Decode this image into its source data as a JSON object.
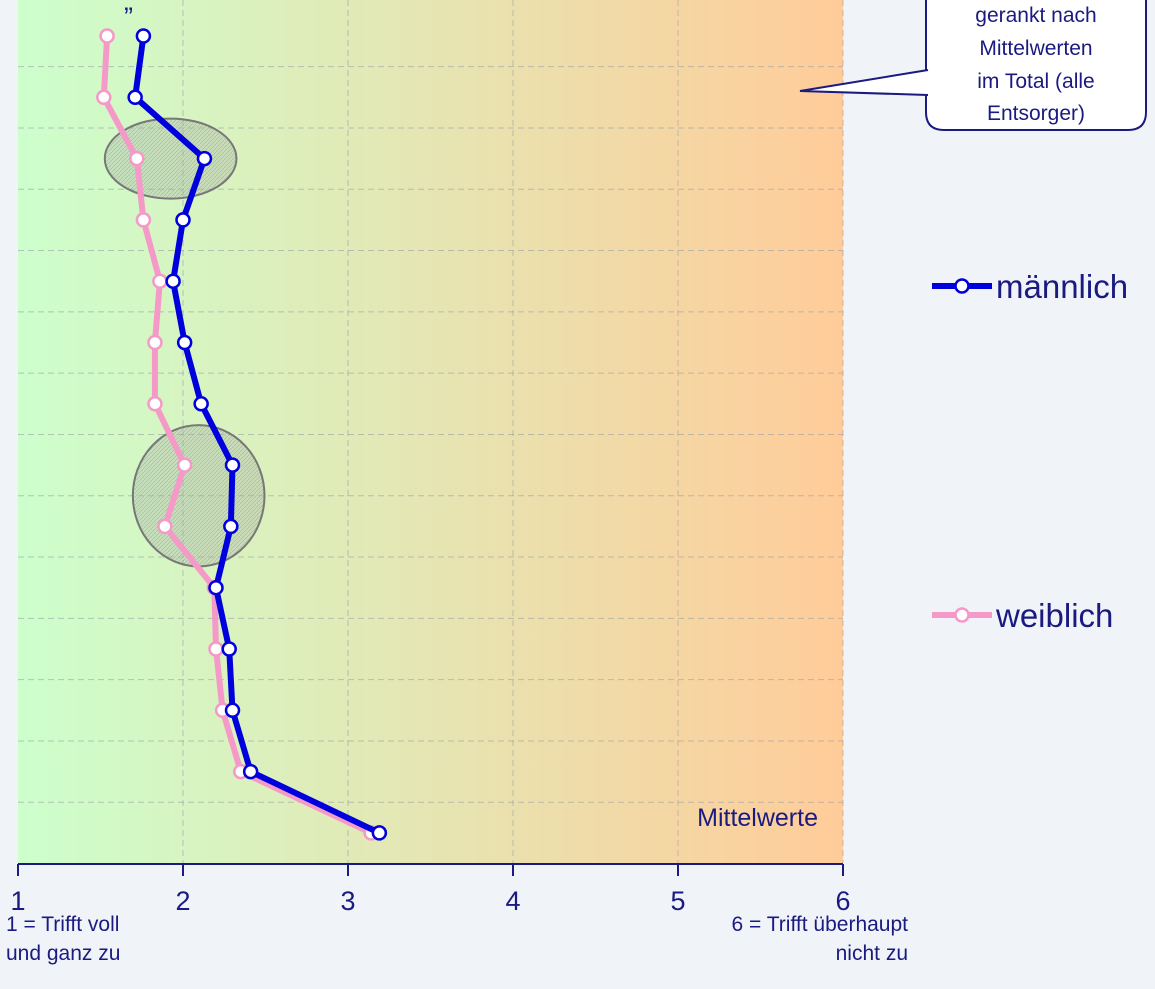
{
  "chart_data": {
    "type": "line",
    "orientation": "horizontal",
    "xlim": [
      1,
      6
    ],
    "x_ticks": [
      1,
      2,
      3,
      4,
      5,
      6
    ],
    "x_tick_labels": [
      "1",
      "2",
      "3",
      "4",
      "5",
      "6"
    ],
    "x_min_note": [
      "1 = Trifft voll",
      "und ganz zu"
    ],
    "x_max_note": [
      "6 = Trifft überhaupt",
      "nicht zu"
    ],
    "plot_caption": "Mittelwerte",
    "callout": [
      "gerankt nach",
      "Mittelwerten",
      "im Total (alle",
      "Entsorger)"
    ],
    "top_fragment": "„",
    "background_gradient": [
      "#ccffcc",
      "#ffcc99"
    ],
    "grid": true,
    "legend_placement": "right",
    "series": [
      {
        "name": "männlich",
        "color": "#0000dd",
        "values": [
          1.76,
          1.71,
          2.13,
          2.0,
          1.94,
          2.01,
          2.11,
          2.3,
          2.29,
          2.2,
          2.28,
          2.3,
          2.41,
          3.19
        ]
      },
      {
        "name": "weiblich",
        "color": "#f59ac8",
        "values": [
          1.54,
          1.52,
          1.72,
          1.76,
          1.86,
          1.83,
          1.83,
          2.01,
          1.89,
          2.19,
          2.2,
          2.24,
          2.35,
          3.14
        ]
      }
    ],
    "highlight_groups": [
      [
        2
      ],
      [
        7,
        8
      ]
    ]
  }
}
